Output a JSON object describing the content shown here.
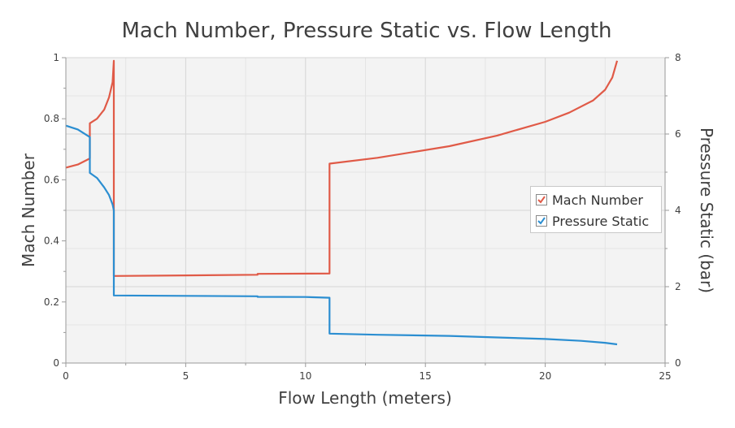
{
  "chart_data": {
    "type": "line",
    "title": "Mach Number, Pressure Static vs. Flow Length",
    "xlabel": "Flow Length (meters)",
    "ylabel": "Mach Number",
    "y2label": "Pressure Static (bar)",
    "xlim": [
      0,
      25
    ],
    "ylim": [
      0,
      1
    ],
    "y2lim": [
      0,
      8
    ],
    "xticks": [
      "0",
      "5",
      "10",
      "15",
      "20",
      "25"
    ],
    "yticks": [
      "0",
      "0.2",
      "0.4",
      "0.6",
      "0.8",
      "1"
    ],
    "y2ticks": [
      "0",
      "2",
      "4",
      "6",
      "8"
    ],
    "grid": true,
    "legend": "center-right",
    "series": [
      {
        "name": "Mach Number",
        "axis": "left",
        "color": "#e05a47",
        "points": [
          [
            0,
            0.64
          ],
          [
            0.5,
            0.65
          ],
          [
            1.0,
            0.67
          ],
          [
            1.0,
            0.785
          ],
          [
            1.3,
            0.8
          ],
          [
            1.6,
            0.83
          ],
          [
            1.8,
            0.87
          ],
          [
            1.95,
            0.92
          ],
          [
            2.0,
            0.99
          ],
          [
            2.0,
            0.285
          ],
          [
            5.0,
            0.287
          ],
          [
            8.0,
            0.289
          ],
          [
            8.0,
            0.292
          ],
          [
            11.0,
            0.293
          ],
          [
            11.0,
            0.653
          ],
          [
            13.0,
            0.672
          ],
          [
            16.0,
            0.71
          ],
          [
            18.0,
            0.745
          ],
          [
            20.0,
            0.79
          ],
          [
            21.0,
            0.82
          ],
          [
            22.0,
            0.86
          ],
          [
            22.5,
            0.895
          ],
          [
            22.8,
            0.935
          ],
          [
            23.0,
            0.99
          ]
        ]
      },
      {
        "name": "Pressure Static",
        "axis": "right",
        "color": "#2b8ed1",
        "points": [
          [
            0,
            6.22
          ],
          [
            0.5,
            6.12
          ],
          [
            1.0,
            5.92
          ],
          [
            1.0,
            4.98
          ],
          [
            1.3,
            4.85
          ],
          [
            1.6,
            4.6
          ],
          [
            1.8,
            4.4
          ],
          [
            1.95,
            4.15
          ],
          [
            2.0,
            4.0
          ],
          [
            2.0,
            1.77
          ],
          [
            5.0,
            1.76
          ],
          [
            8.0,
            1.75
          ],
          [
            8.0,
            1.735
          ],
          [
            10.0,
            1.73
          ],
          [
            11.0,
            1.71
          ],
          [
            11.0,
            0.77
          ],
          [
            13.0,
            0.74
          ],
          [
            16.0,
            0.71
          ],
          [
            18.0,
            0.67
          ],
          [
            20.0,
            0.63
          ],
          [
            21.5,
            0.58
          ],
          [
            22.5,
            0.53
          ],
          [
            23.0,
            0.49
          ]
        ]
      }
    ],
    "legend_check_color": "#3c7fc4"
  }
}
